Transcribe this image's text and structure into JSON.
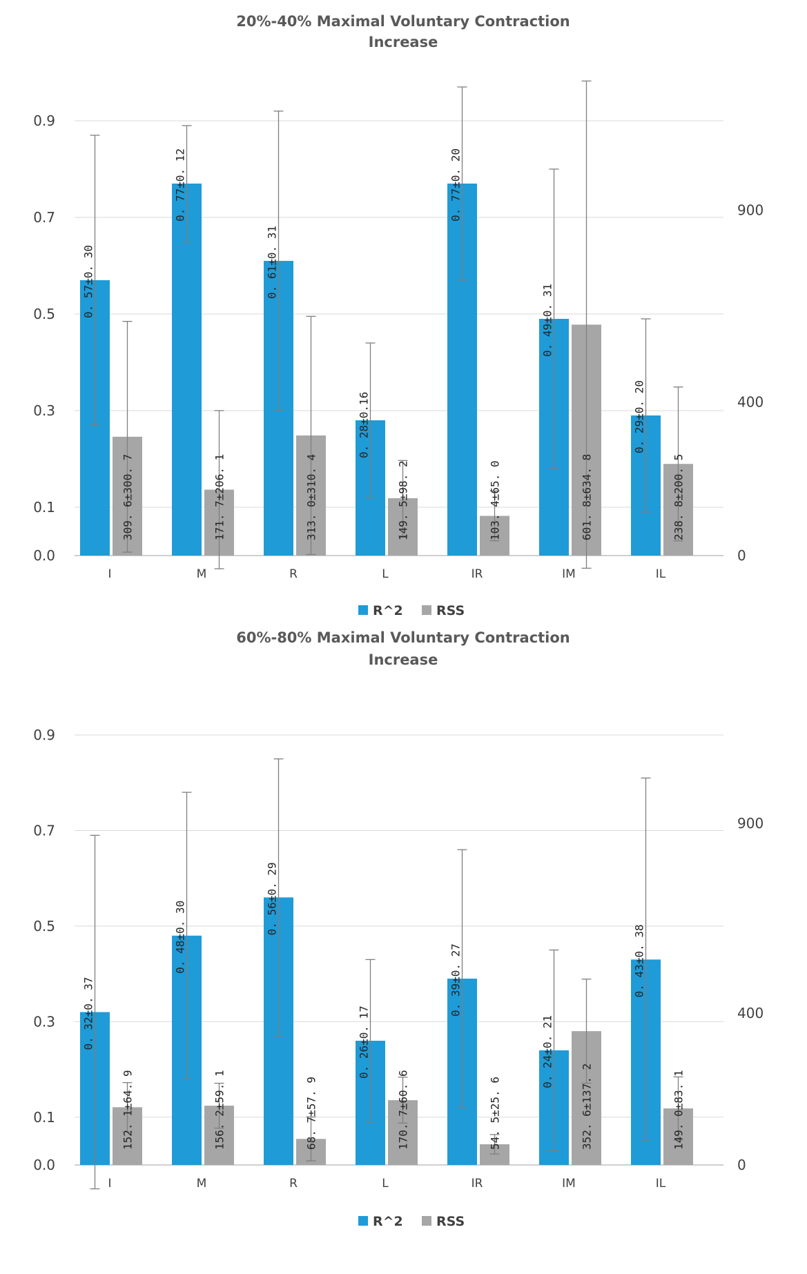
{
  "chart_data": [
    {
      "type": "bar",
      "title": "20%-40% Maximal Voluntary Contraction Increase",
      "categories": [
        "I",
        "M",
        "R",
        "L",
        "IR",
        "IM",
        "IL"
      ],
      "y_left": {
        "ticks": [
          "0.0",
          "0.1",
          "0.3",
          "0.5",
          "0.7",
          "0.9"
        ],
        "ylim": [
          0,
          0.9
        ]
      },
      "y_right": {
        "ticks": [
          "0",
          "400",
          "900"
        ]
      },
      "series": [
        {
          "name": "R^2",
          "axis": "left",
          "color": "#1F9BD7",
          "values": [
            0.57,
            0.77,
            0.61,
            0.28,
            0.77,
            0.49,
            0.29
          ],
          "errors": [
            0.3,
            0.12,
            0.31,
            0.16,
            0.2,
            0.31,
            0.2
          ],
          "labels": [
            "0. 57±0. 30",
            "0. 77±0. 12",
            "0. 61±0. 31",
            "0. 28±0.16",
            "0. 77±0. 20",
            "0. 49±0. 31",
            "0. 29±0. 20"
          ]
        },
        {
          "name": "RSS",
          "axis": "right",
          "color": "#A6A6A6",
          "values": [
            309.6,
            171.7,
            313.0,
            149.5,
            103.4,
            601.8,
            238.8
          ],
          "errors": [
            300.7,
            206.1,
            310.4,
            98.2,
            65.0,
            634.8,
            200.5
          ],
          "labels": [
            "309. 6±300. 7",
            "171. 7±206. 1",
            "313. 0±310. 4",
            "149. 5±98. 2",
            "103. 4±65. 0",
            "601. 8±634. 8",
            "238. 8±200. 5"
          ]
        }
      ],
      "legend": [
        "R^2",
        "RSS"
      ],
      "legend_position": "bottom",
      "grid": true
    },
    {
      "type": "bar",
      "title": "60%-80% Maximal Voluntary Contraction Increase",
      "categories": [
        "I",
        "M",
        "R",
        "L",
        "IR",
        "IM",
        "IL"
      ],
      "y_left": {
        "ticks": [
          "0.0",
          "0.1",
          "0.3",
          "0.5",
          "0.7",
          "0.9"
        ],
        "ylim": [
          0,
          0.9
        ]
      },
      "y_right": {
        "ticks": [
          "0",
          "400",
          "900"
        ]
      },
      "series": [
        {
          "name": "R^2",
          "axis": "left",
          "color": "#1F9BD7",
          "values": [
            0.32,
            0.48,
            0.56,
            0.26,
            0.39,
            0.24,
            0.43
          ],
          "errors": [
            0.37,
            0.3,
            0.29,
            0.17,
            0.27,
            0.21,
            0.38
          ],
          "labels": [
            "0. 32±0. 37",
            "0. 48±0. 30",
            "0. 56±0. 29",
            "0. 26±0. 17",
            "0. 39±0. 27",
            "0. 24±0. 21",
            "0. 43±0. 38"
          ]
        },
        {
          "name": "RSS",
          "axis": "right",
          "color": "#A6A6A6",
          "values": [
            152.1,
            156.2,
            68.7,
            170.7,
            54.5,
            352.6,
            149.0
          ],
          "errors": [
            64.9,
            59.1,
            57.9,
            60.6,
            25.6,
            137.2,
            83.1
          ],
          "labels": [
            "152. 1±64. 9",
            "156. 2±59. 1",
            "68. 7±57. 9",
            "170. 7±60. 6",
            "54. 5±25. 6",
            "352. 6±137. 2",
            "149. 0±83. 1"
          ]
        }
      ],
      "legend": [
        "R^2",
        "RSS"
      ],
      "legend_position": "bottom",
      "grid": true
    }
  ]
}
